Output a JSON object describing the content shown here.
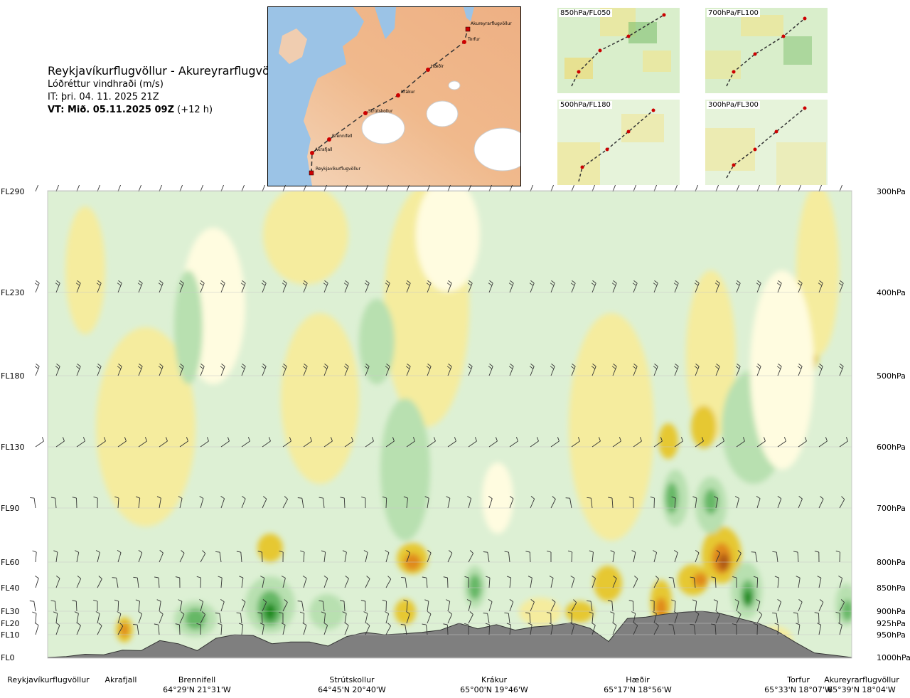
{
  "header": {
    "route": "Reykjavíkurflugvöllur - Akureyrarflugvöllur",
    "parameter": "Lóðréttur vindhraði (m/s)",
    "issue_time": "IT: þri. 04. 11. 2025 21Z",
    "valid_time_bold": "VT: Mið. 05.11.2025 09Z",
    "valid_offset": "(+12 h)"
  },
  "route_map": {
    "points": [
      {
        "name": "Akureyrarflugvöllur",
        "type": "airport"
      },
      {
        "name": "Torfur",
        "type": "waypoint"
      },
      {
        "name": "Hæðir",
        "type": "waypoint"
      },
      {
        "name": "Krákur",
        "type": "waypoint"
      },
      {
        "name": "Strútskollur",
        "type": "waypoint"
      },
      {
        "name": "Brennifell",
        "type": "waypoint"
      },
      {
        "name": "Akrafjall",
        "type": "waypoint"
      },
      {
        "name": "Reykjavíkurflugvöllur",
        "type": "airport"
      }
    ]
  },
  "mini_maps": [
    {
      "label": "850hPa/FL050"
    },
    {
      "label": "700hPa/FL100"
    },
    {
      "label": "500hPa/FL180"
    },
    {
      "label": "300hPa/FL300"
    }
  ],
  "colors": {
    "strong_up": "#1e8a1e",
    "moderate_up": "#66b866",
    "weak_up": "#b8e0b0",
    "calm": "#ddf0d4",
    "neutral": "#fffce0",
    "weak_down": "#f5ec9e",
    "moderate_down": "#e6c832",
    "strong_down": "#e08a1e",
    "very_strong_down": "#b05a14",
    "terrain": "#7f7f7f"
  },
  "chart_data": {
    "type": "heatmap",
    "title": "Lóðréttur vindhraði (m/s)",
    "left_axis": {
      "labels": [
        "FL290",
        "FL230",
        "FL180",
        "FL130",
        "FL90",
        "FL60",
        "FL40",
        "FL30",
        "FL20",
        "FL10",
        "FL0"
      ]
    },
    "right_axis": {
      "labels": [
        "300hPa",
        "400hPa",
        "500hPa",
        "600hPa",
        "700hPa",
        "800hPa",
        "850hPa",
        "900hPa",
        "925hPa",
        "950hPa",
        "1000hPa"
      ]
    },
    "barb_levels_hPa": [
      300,
      400,
      500,
      600,
      700,
      800,
      850,
      900,
      925,
      950
    ],
    "x_points": [
      {
        "name": "Reykjavíkurflugvöllur",
        "coord": ""
      },
      {
        "name": "Akrafjall",
        "coord": ""
      },
      {
        "name": "Brennifell",
        "coord": "64°29'N 21°31'W"
      },
      {
        "name": "Strútskollur",
        "coord": "64°45'N 20°40'W"
      },
      {
        "name": "Krákur",
        "coord": "65°00'N 19°46'W"
      },
      {
        "name": "Hæðir",
        "coord": "65°17'N 18°56'W"
      },
      {
        "name": "Torfur",
        "coord": "65°33'N 18°07'W"
      },
      {
        "name": "Akureyrarflugvöllur",
        "coord": "65°39'N 18°04'W"
      }
    ],
    "terrain_profile_hPa": [
      1000,
      998,
      993,
      994,
      984,
      985,
      963,
      970,
      985,
      958,
      950,
      952,
      970,
      966,
      966,
      975,
      954,
      945,
      950,
      948,
      945,
      940,
      925,
      937,
      928,
      940,
      933,
      930,
      924,
      936,
      965,
      915,
      912,
      906,
      902,
      900,
      905,
      915,
      925,
      942,
      967,
      990,
      995,
      1000
    ],
    "grid": true
  }
}
